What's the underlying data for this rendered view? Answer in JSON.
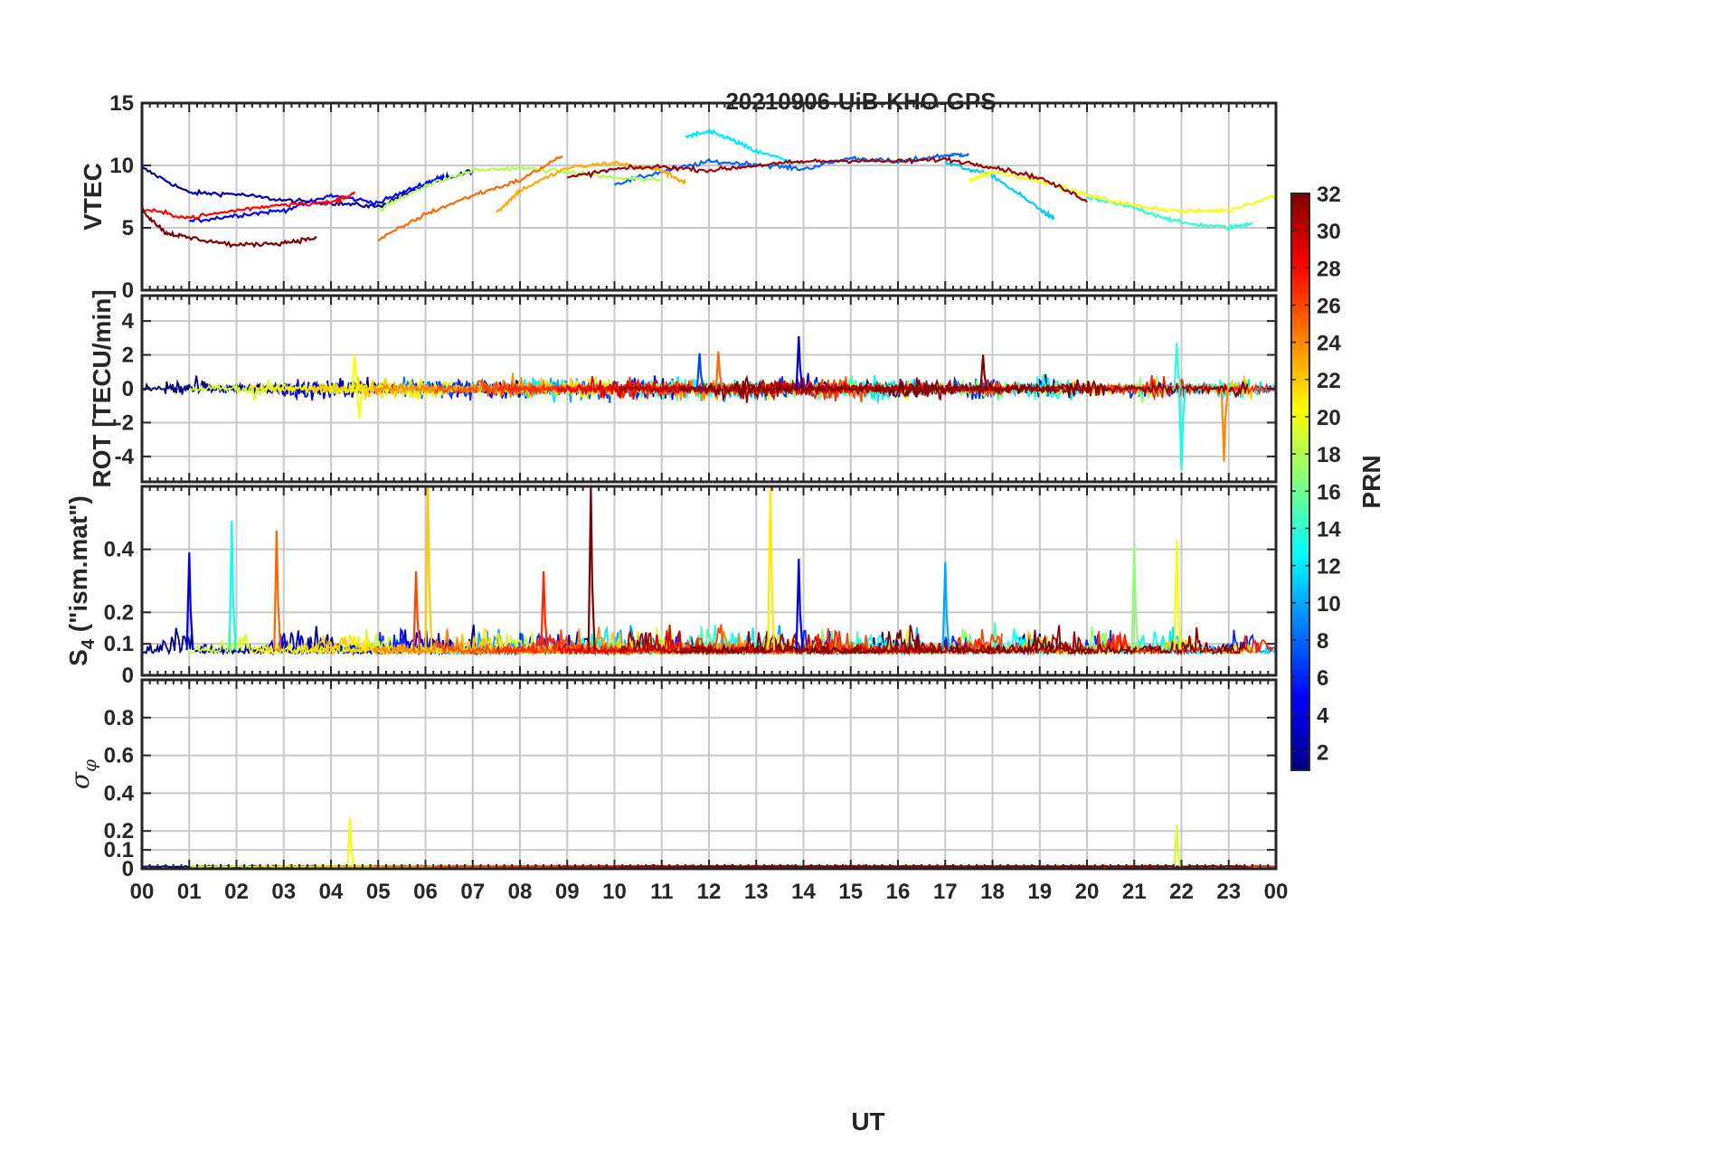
{
  "figure": {
    "title": "20210906-UiB-KHO-GPS",
    "xlabel": "UT",
    "colorbar_label": "PRN"
  },
  "chart_data": [
    {
      "type": "line",
      "id": "vtec",
      "title": "20210906-UiB-KHO-GPS",
      "xlabel": "",
      "ylabel": "VTEC",
      "xlim": [
        0,
        24
      ],
      "ylim": [
        0,
        15
      ],
      "yticks": [
        "0",
        "5",
        "10",
        "15"
      ],
      "grid": true,
      "series": [
        {
          "prn": 2,
          "x": [
            0,
            1,
            2,
            3,
            4,
            5,
            6,
            7
          ],
          "y": [
            9.8,
            7.8,
            7.7,
            7.2,
            7.0,
            6.7,
            8.4,
            9.6
          ]
        },
        {
          "prn": 5,
          "x": [
            1,
            2,
            3,
            4,
            5,
            6,
            6.5
          ],
          "y": [
            5.5,
            6.0,
            6.4,
            7.6,
            7.0,
            8.6,
            9.2
          ]
        },
        {
          "prn": 8,
          "x": [
            10,
            11,
            12,
            13,
            14,
            15,
            16,
            17,
            17.5
          ],
          "y": [
            8.5,
            9.5,
            10.3,
            10.1,
            9.7,
            10.6,
            10.3,
            10.8,
            10.9
          ]
        },
        {
          "prn": 11,
          "x": [
            17,
            18,
            19,
            19.3
          ],
          "y": [
            10.2,
            9.2,
            6.5,
            5.7
          ]
        },
        {
          "prn": 12,
          "x": [
            11.5,
            12,
            12.4,
            13,
            14
          ],
          "y": [
            12.3,
            12.7,
            12.2,
            11.1,
            10.1
          ]
        },
        {
          "prn": 14,
          "x": [
            20,
            21,
            22,
            23,
            23.5
          ],
          "y": [
            7.4,
            6.6,
            5.4,
            5.0,
            5.4
          ]
        },
        {
          "prn": 18,
          "x": [
            5,
            6,
            7,
            8,
            9,
            10,
            11
          ],
          "y": [
            6.4,
            8.4,
            9.6,
            9.8,
            9.5,
            9.0,
            8.8
          ]
        },
        {
          "prn": 20,
          "x": [
            17.5,
            18,
            19,
            20,
            21,
            22,
            23,
            24
          ],
          "y": [
            8.8,
            9.5,
            8.8,
            7.6,
            6.8,
            6.3,
            6.4,
            7.6
          ]
        },
        {
          "prn": 23,
          "x": [
            7.5,
            8,
            9,
            10,
            11,
            11.5
          ],
          "y": [
            6.2,
            8.0,
            9.8,
            10.2,
            9.6,
            8.6
          ]
        },
        {
          "prn": 25,
          "x": [
            5,
            6,
            7,
            8,
            8.9
          ],
          "y": [
            4.0,
            6.1,
            7.6,
            8.8,
            10.8
          ]
        },
        {
          "prn": 28,
          "x": [
            0,
            1,
            2,
            3,
            4,
            4.5
          ],
          "y": [
            6.5,
            5.8,
            6.4,
            6.9,
            7.0,
            7.8
          ]
        },
        {
          "prn": 31,
          "x": [
            9,
            10,
            11,
            12,
            13,
            14,
            15,
            16,
            17,
            18,
            19,
            20
          ],
          "y": [
            9.0,
            9.7,
            9.9,
            9.6,
            10.0,
            10.3,
            10.4,
            10.3,
            10.5,
            9.9,
            9.0,
            7.2
          ]
        },
        {
          "prn": 32,
          "x": [
            0,
            0.5,
            1,
            2,
            3,
            3.7
          ],
          "y": [
            6.4,
            4.6,
            4.2,
            3.6,
            3.8,
            4.2
          ]
        }
      ]
    },
    {
      "type": "line",
      "id": "rot",
      "xlabel": "",
      "ylabel": "ROT [TECU/min]",
      "xlim": [
        0,
        24
      ],
      "ylim": [
        -5.5,
        5.5
      ],
      "yticks": [
        "-4",
        "-2",
        "0",
        "2",
        "4"
      ],
      "grid": true,
      "spikes": [
        {
          "prn": 20,
          "x": 4.5,
          "y": 2.0
        },
        {
          "prn": 20,
          "x": 4.6,
          "y": -1.8
        },
        {
          "prn": 7,
          "x": 11.8,
          "y": 2.1
        },
        {
          "prn": 25,
          "x": 12.2,
          "y": 2.2
        },
        {
          "prn": 3,
          "x": 13.9,
          "y": 3.1
        },
        {
          "prn": 32,
          "x": 17.8,
          "y": 2.0
        },
        {
          "prn": 14,
          "x": 21.9,
          "y": 2.7
        },
        {
          "prn": 13,
          "x": 22.0,
          "y": -4.8
        },
        {
          "prn": 24,
          "x": 22.9,
          "y": -4.3
        }
      ]
    },
    {
      "type": "line",
      "id": "s4",
      "xlabel": "",
      "ylabel": "S_4 (\"ism.mat\")",
      "xlim": [
        0,
        24
      ],
      "ylim": [
        0,
        0.6
      ],
      "yticks": [
        "0",
        "0.1",
        "0.2",
        "0.4"
      ],
      "grid": true,
      "spikes": [
        {
          "prn": 4,
          "x": 1.0,
          "y": 0.39
        },
        {
          "prn": 13,
          "x": 1.9,
          "y": 0.49
        },
        {
          "prn": 25,
          "x": 2.85,
          "y": 0.46
        },
        {
          "prn": 26,
          "x": 5.8,
          "y": 0.33
        },
        {
          "prn": 22,
          "x": 6.05,
          "y": 0.6
        },
        {
          "prn": 27,
          "x": 8.5,
          "y": 0.33
        },
        {
          "prn": 32,
          "x": 9.5,
          "y": 0.6
        },
        {
          "prn": 21,
          "x": 13.3,
          "y": 0.6
        },
        {
          "prn": 4,
          "x": 13.9,
          "y": 0.37
        },
        {
          "prn": 10,
          "x": 17.0,
          "y": 0.36
        },
        {
          "prn": 17,
          "x": 21.0,
          "y": 0.41
        },
        {
          "prn": 20,
          "x": 21.9,
          "y": 0.43
        }
      ]
    },
    {
      "type": "line",
      "id": "sigma-phi",
      "xlabel": "UT",
      "ylabel": "σ_φ",
      "xlim": [
        0,
        24
      ],
      "ylim": [
        0,
        1
      ],
      "yticks": [
        "0",
        "0.1",
        "0.2",
        "0.4",
        "0.6",
        "0.8"
      ],
      "xticks": [
        "00",
        "01",
        "02",
        "03",
        "04",
        "05",
        "06",
        "07",
        "08",
        "09",
        "10",
        "11",
        "12",
        "13",
        "14",
        "15",
        "16",
        "17",
        "18",
        "19",
        "20",
        "21",
        "22",
        "23",
        "00"
      ],
      "grid": true,
      "spikes": [
        {
          "prn": 20,
          "x": 4.4,
          "y": 0.27
        },
        {
          "prn": 19,
          "x": 21.9,
          "y": 0.23
        }
      ]
    }
  ],
  "colorbar": {
    "label": "PRN",
    "range": [
      1,
      32
    ],
    "ticks": [
      "2",
      "4",
      "6",
      "8",
      "10",
      "12",
      "14",
      "16",
      "18",
      "20",
      "22",
      "24",
      "26",
      "28",
      "30",
      "32"
    ],
    "colormap": "jet"
  }
}
